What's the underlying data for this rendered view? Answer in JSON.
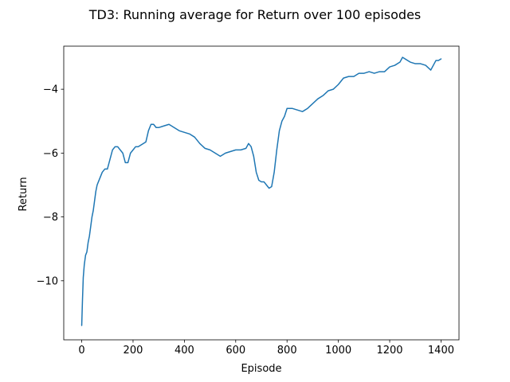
{
  "chart_data": {
    "type": "line",
    "title": "TD3: Running average for Return over 100 episodes",
    "xlabel": "Episode",
    "ylabel": "Return",
    "xlim": [
      -70,
      1470
    ],
    "ylim": [
      -11.85,
      -2.65
    ],
    "xticks": [
      0,
      200,
      400,
      600,
      800,
      1000,
      1200,
      1400
    ],
    "xtick_labels": [
      "0",
      "200",
      "400",
      "600",
      "800",
      "1000",
      "1200",
      "1400"
    ],
    "yticks": [
      -10,
      -8,
      -6,
      -4
    ],
    "ytick_labels": [
      "−10",
      "−8",
      "−6",
      "−4"
    ],
    "grid": false,
    "legend": "none",
    "series": [
      {
        "color": "#1f77b4",
        "x": [
          0,
          3,
          6,
          10,
          15,
          20,
          25,
          30,
          35,
          40,
          45,
          50,
          55,
          60,
          65,
          70,
          80,
          90,
          100,
          110,
          120,
          130,
          140,
          150,
          160,
          170,
          180,
          190,
          200,
          210,
          220,
          230,
          240,
          250,
          260,
          270,
          280,
          290,
          300,
          320,
          340,
          360,
          380,
          400,
          420,
          440,
          460,
          480,
          500,
          520,
          540,
          560,
          580,
          600,
          620,
          640,
          650,
          660,
          670,
          680,
          690,
          700,
          710,
          720,
          730,
          740,
          750,
          760,
          770,
          780,
          790,
          800,
          820,
          840,
          860,
          880,
          900,
          920,
          940,
          960,
          980,
          1000,
          1020,
          1040,
          1060,
          1080,
          1100,
          1120,
          1140,
          1160,
          1180,
          1200,
          1220,
          1240,
          1250,
          1260,
          1280,
          1300,
          1320,
          1340,
          1360,
          1370,
          1380,
          1390,
          1400
        ],
        "y": [
          -11.4,
          -10.6,
          -9.9,
          -9.5,
          -9.2,
          -9.1,
          -8.8,
          -8.6,
          -8.3,
          -8.0,
          -7.8,
          -7.5,
          -7.2,
          -7.0,
          -6.9,
          -6.8,
          -6.6,
          -6.5,
          -6.5,
          -6.2,
          -5.9,
          -5.8,
          -5.8,
          -5.9,
          -6.0,
          -6.3,
          -6.3,
          -6.0,
          -5.9,
          -5.8,
          -5.8,
          -5.75,
          -5.7,
          -5.65,
          -5.3,
          -5.1,
          -5.1,
          -5.2,
          -5.2,
          -5.15,
          -5.1,
          -5.2,
          -5.3,
          -5.35,
          -5.4,
          -5.5,
          -5.7,
          -5.85,
          -5.9,
          -6.0,
          -6.1,
          -6.0,
          -5.95,
          -5.9,
          -5.9,
          -5.85,
          -5.7,
          -5.8,
          -6.1,
          -6.6,
          -6.85,
          -6.9,
          -6.9,
          -7.0,
          -7.1,
          -7.05,
          -6.6,
          -5.9,
          -5.3,
          -5.0,
          -4.85,
          -4.6,
          -4.6,
          -4.65,
          -4.7,
          -4.6,
          -4.45,
          -4.3,
          -4.2,
          -4.05,
          -4.0,
          -3.85,
          -3.65,
          -3.6,
          -3.6,
          -3.5,
          -3.5,
          -3.45,
          -3.5,
          -3.45,
          -3.45,
          -3.3,
          -3.25,
          -3.15,
          -3.0,
          -3.05,
          -3.15,
          -3.2,
          -3.2,
          -3.25,
          -3.4,
          -3.25,
          -3.1,
          -3.1,
          -3.05
        ]
      }
    ]
  }
}
